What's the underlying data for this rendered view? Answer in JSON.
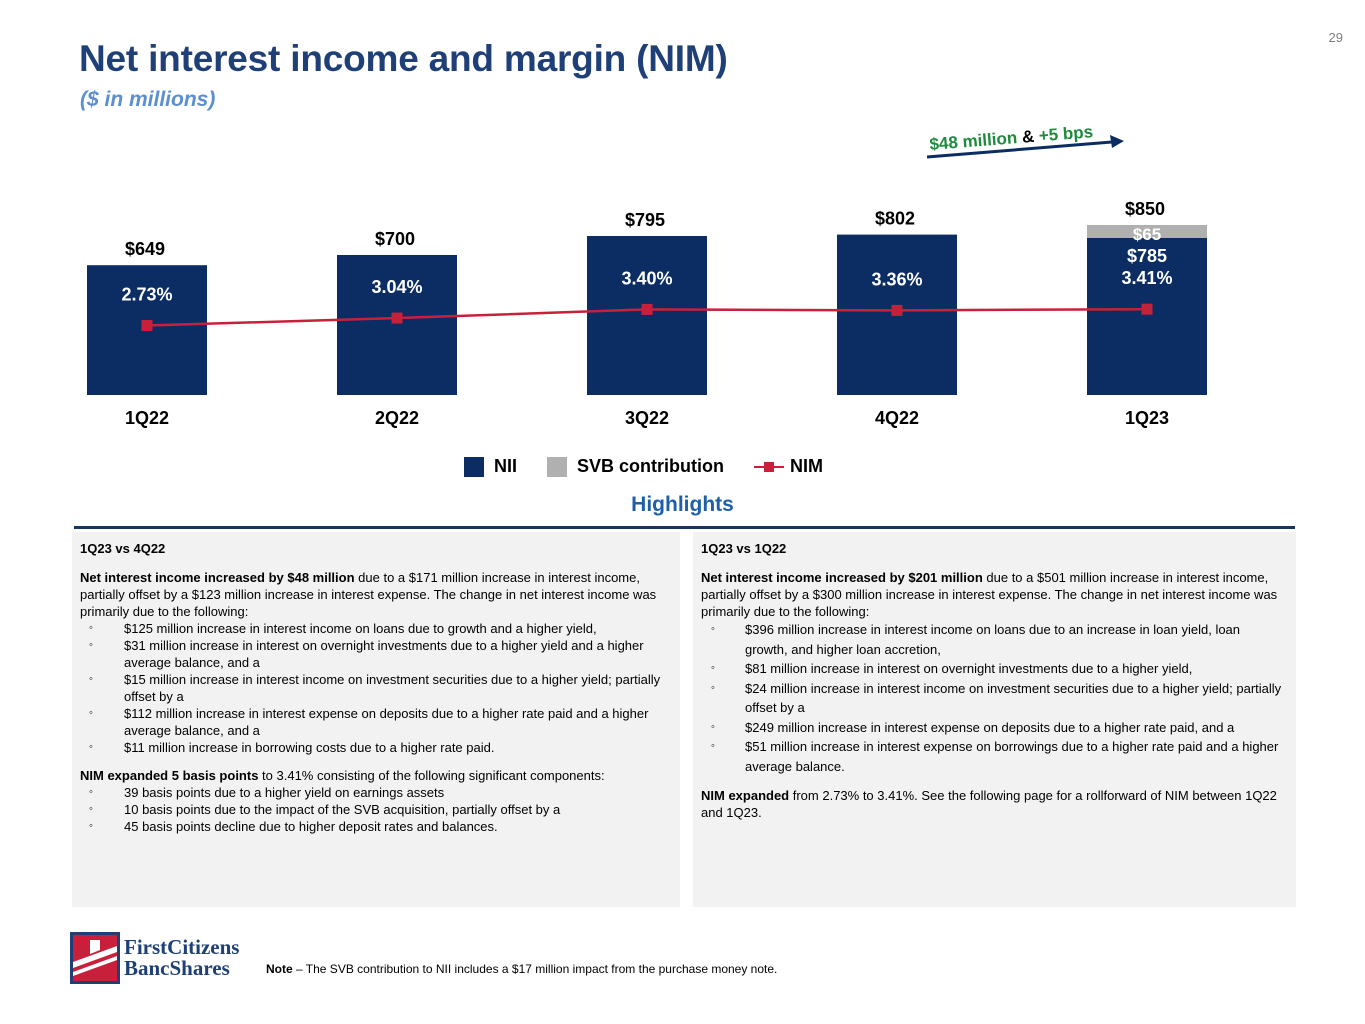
{
  "page_number": "29",
  "title": "Net interest income and margin (NIM)",
  "subtitle": "($ in millions)",
  "colors": {
    "nii": "#0b2d63",
    "svb": "#b0b0b0",
    "nim": "#c8203a",
    "green": "#1e8a3c",
    "navy": "#1f3f77"
  },
  "chart_data": {
    "type": "bar",
    "categories": [
      "1Q22",
      "2Q22",
      "3Q22",
      "4Q22",
      "1Q23"
    ],
    "series": [
      {
        "name": "NII",
        "values": [
          649,
          700,
          795,
          802,
          785
        ]
      },
      {
        "name": "SVB contribution",
        "values": [
          0,
          0,
          0,
          0,
          65
        ]
      },
      {
        "name": "NIM",
        "values": [
          2.73,
          3.04,
          3.4,
          3.36,
          3.41
        ]
      }
    ],
    "total_labels": [
      "$649",
      "$700",
      "$795",
      "$802",
      "$850"
    ],
    "nim_labels": [
      "2.73%",
      "3.04%",
      "3.40%",
      "3.36%",
      "3.41%"
    ],
    "stack_labels": {
      "nii": "$785",
      "svb": "$65"
    },
    "annotation": {
      "part1": "$48 million",
      "amp": " & ",
      "part2": "+5 bps"
    },
    "legend": [
      "NII",
      "SVB contribution",
      "NIM"
    ]
  },
  "highlights_title": "Highlights",
  "left_panel": {
    "heading": "1Q23 vs 4Q22",
    "p1_bold": "Net interest income increased by $48 million",
    "p1_rest": " due to a $171 million increase in interest income, partially offset by a $123 million increase in interest expense. The change in net interest income was primarily due to the following:",
    "bullets1": [
      "$125 million increase in interest income on loans due to growth and a higher yield,",
      "$31 million increase in interest on overnight investments due to a higher yield and a higher average balance, and a",
      "$15 million increase in interest income on investment securities due to a higher yield; partially offset by a",
      "$112 million increase in interest expense on deposits due to a higher rate paid and a higher average balance, and a",
      "$11 million increase in borrowing costs due to a higher rate paid."
    ],
    "p2_bold": "NIM expanded 5 basis points",
    "p2_rest": " to 3.41% consisting of the following significant components:",
    "bullets2": [
      "39 basis points due to a higher yield on earnings assets",
      "10 basis points due to the impact of the SVB acquisition, partially offset by a",
      "45 basis points decline due to higher deposit rates and balances."
    ]
  },
  "right_panel": {
    "heading": "1Q23 vs 1Q22",
    "p1_bold": "Net interest income increased by $201 million",
    "p1_rest": " due to a $501 million increase in interest income, partially offset by a $300 million increase in interest expense. The change in net interest income was primarily due to the following:",
    "bullets1": [
      "$396 million increase in interest income on loans due to an increase in loan yield, loan growth, and higher loan accretion,",
      "$81 million increase in interest on overnight investments due to a higher yield,",
      "$24 million increase in interest income on investment securities due to a higher yield; partially offset by a",
      "$249 million increase in interest expense on deposits due to a higher rate paid, and a",
      "$51 million increase in interest expense on borrowings due to a higher rate paid and a higher average balance."
    ],
    "p2_bold": "NIM expanded",
    "p2_rest": " from 2.73% to 3.41%. See the following page for a rollforward of NIM between 1Q22 and 1Q23."
  },
  "logo": {
    "line1": "FirstCitizens",
    "line2": "BancShares"
  },
  "note": {
    "bold": "Note",
    "text": " – The SVB contribution to NII includes a $17 million impact from the purchase money note."
  }
}
